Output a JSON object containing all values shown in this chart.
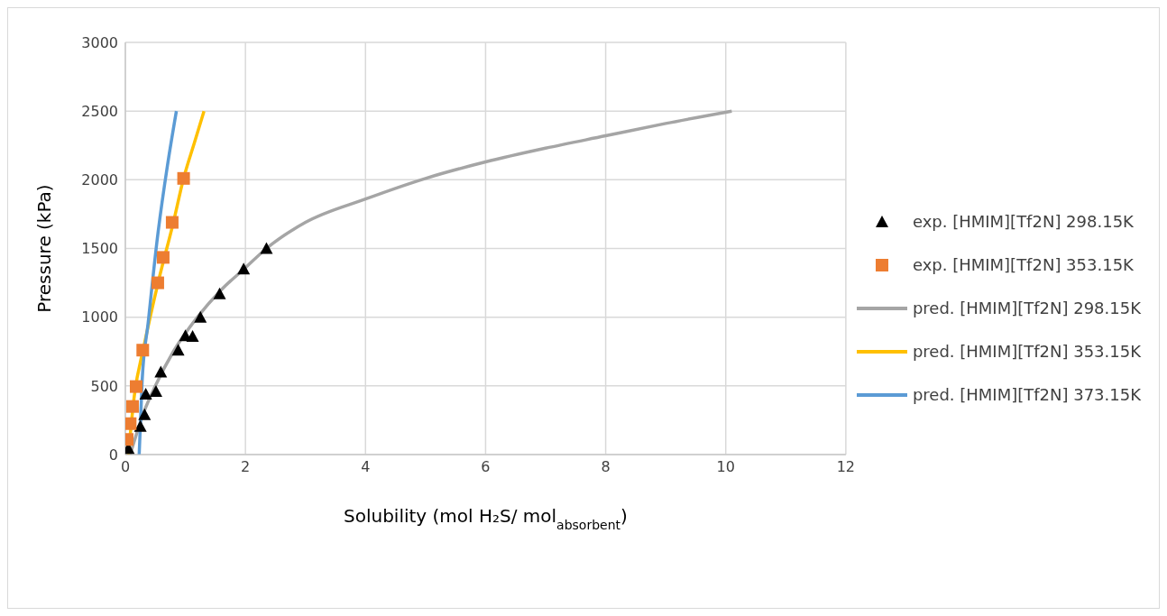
{
  "chart_data": {
    "type": "scatter",
    "xlabel": "Solubility (mol H₂S/ mol$_{absorbent}$)",
    "ylabel": "Pressure (kPa)",
    "xlim": [
      0,
      12
    ],
    "xticks": [
      0,
      2,
      4,
      6,
      8,
      10,
      12
    ],
    "ylim": [
      0,
      3000
    ],
    "yticks": [
      0,
      500,
      1000,
      1500,
      2000,
      2500,
      3000
    ],
    "grid": true,
    "legend": "right",
    "series": [
      {
        "name": "exp. [HMIM][Tf2N] 298.15K",
        "type": "scatter",
        "marker": "triangle",
        "color": "#000000",
        "x": [
          0.05,
          0.25,
          0.32,
          0.34,
          0.51,
          0.59,
          0.88,
          1.0,
          1.12,
          1.25,
          1.57,
          1.97,
          2.35
        ],
        "values": [
          45,
          205,
          290,
          440,
          460,
          600,
          760,
          865,
          860,
          1000,
          1170,
          1350,
          1500
        ]
      },
      {
        "name": "exp. [HMIM][Tf2N] 353.15K",
        "type": "scatter",
        "marker": "square",
        "color": "#ed7d31",
        "x": [
          0.03,
          0.08,
          0.12,
          0.18,
          0.29,
          0.54,
          0.63,
          0.78,
          0.97
        ],
        "values": [
          110,
          225,
          350,
          495,
          760,
          1250,
          1435,
          1690,
          2010
        ]
      },
      {
        "name": "pred. [HMIM][Tf2N] 298.15K",
        "type": "line",
        "marker": "none",
        "color": "#a5a5a5",
        "x": [
          0.08,
          0.15,
          0.3,
          0.5,
          0.8,
          1.2,
          1.6,
          2,
          2.35,
          3,
          4,
          5,
          6,
          7,
          8,
          9,
          10.1
        ],
        "values": [
          0,
          100,
          300,
          500,
          750,
          1000,
          1200,
          1360,
          1500,
          1690,
          1860,
          2010,
          2130,
          2230,
          2320,
          2410,
          2500
        ]
      },
      {
        "name": "pred. [HMIM][Tf2N] 353.15K",
        "type": "line",
        "marker": "none",
        "color": "#ffc000",
        "x": [
          0.05,
          0.15,
          0.31,
          0.55,
          0.8,
          0.97,
          1.15,
          1.31
        ],
        "values": [
          0,
          430,
          790,
          1260,
          1690,
          2010,
          2270,
          2500
        ]
      },
      {
        "name": "pred. [HMIM][Tf2N] 373.15K",
        "type": "line",
        "marker": "none",
        "color": "#5b9bd5",
        "x": [
          0.23,
          0.28,
          0.38,
          0.54,
          0.7,
          0.85
        ],
        "values": [
          0,
          540,
          960,
          1600,
          2100,
          2500
        ]
      }
    ]
  }
}
